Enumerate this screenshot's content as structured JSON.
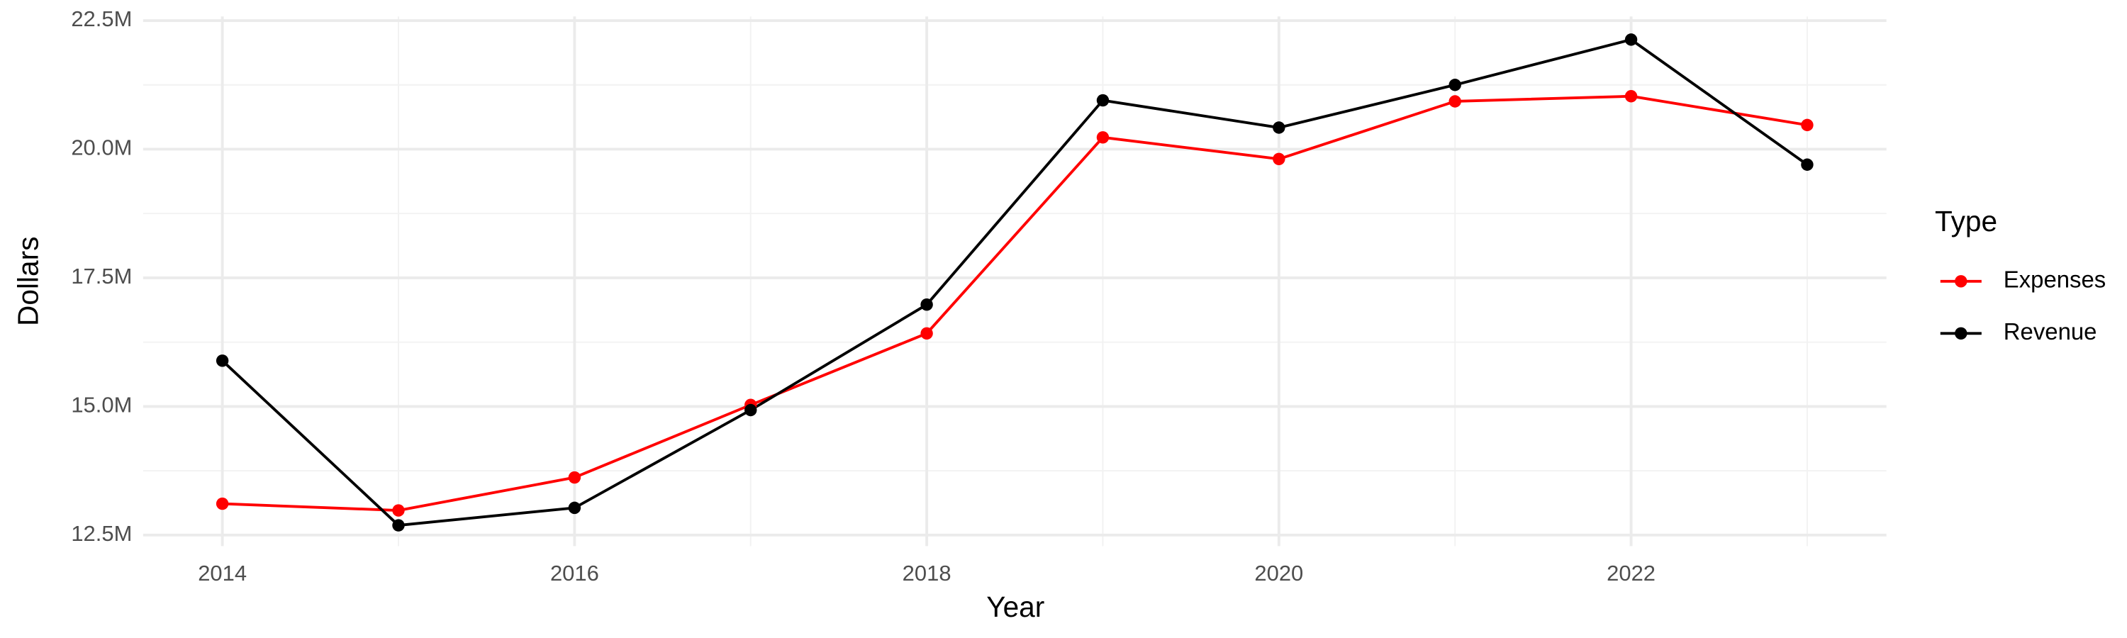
{
  "chart_data": {
    "type": "line",
    "x_label": "Year",
    "y_label": "Dollars",
    "legend_title": "Type",
    "x": [
      2014,
      2015,
      2016,
      2017,
      2018,
      2019,
      2020,
      2021,
      2022,
      2023
    ],
    "series": [
      {
        "name": "Expenses",
        "color": "#ff0000",
        "values": [
          13110000,
          12980000,
          13620000,
          15030000,
          16420000,
          20230000,
          19810000,
          20930000,
          21030000,
          20470000
        ]
      },
      {
        "name": "Revenue",
        "color": "#000000",
        "values": [
          15890000,
          12690000,
          13030000,
          14930000,
          16980000,
          20950000,
          20420000,
          21250000,
          22130000,
          19700000
        ]
      }
    ],
    "xlim": [
      2013.55,
      2023.45
    ],
    "xticks": [
      2014,
      2016,
      2018,
      2020,
      2022
    ],
    "ylim": [
      12287000,
      22580000
    ],
    "yticks": [
      {
        "value": 12500000,
        "label": "12.5M"
      },
      {
        "value": 15000000,
        "label": "15.0M"
      },
      {
        "value": 17500000,
        "label": "17.5M"
      },
      {
        "value": 20000000,
        "label": "20.0M"
      },
      {
        "value": 22500000,
        "label": "22.5M"
      }
    ],
    "grid": true,
    "legend": "right"
  }
}
